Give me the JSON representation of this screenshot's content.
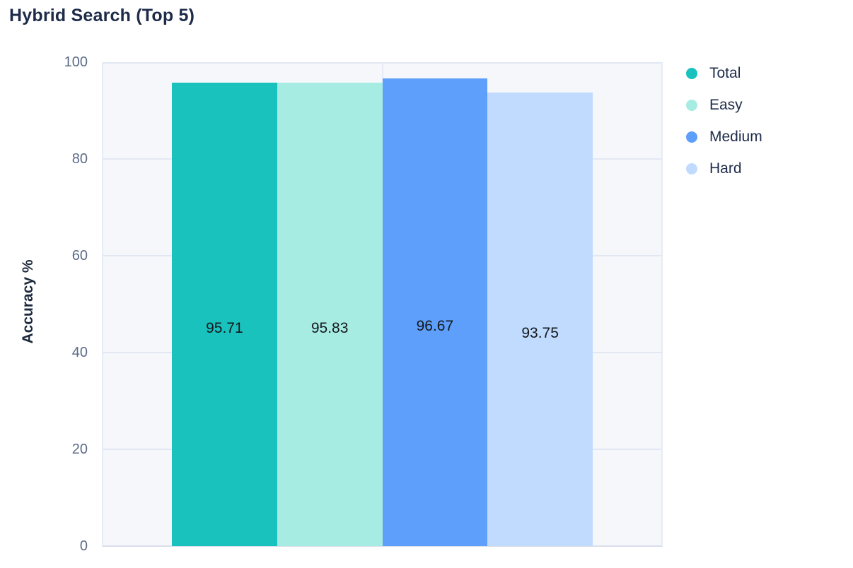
{
  "page": {
    "title": "Hybrid Search (Top 5)"
  },
  "chart_data": {
    "type": "bar",
    "title": "Hybrid Search (Top 5)",
    "xlabel": "",
    "ylabel": "Accuracy %",
    "ylim": [
      0,
      100
    ],
    "yticks": [
      0,
      20,
      40,
      60,
      80,
      100
    ],
    "grid": true,
    "plot_background": "#f5f7fb",
    "gridline_color": "#e2e8f3",
    "axis_line_color": "#d9dfec",
    "tick_text_color": "#5c6b89",
    "title_text_color": "#1e2b49",
    "value_label_color": "#15171c",
    "categories": [
      "Total",
      "Easy",
      "Medium",
      "Hard"
    ],
    "values": [
      95.71,
      95.83,
      96.67,
      93.75
    ],
    "series": [
      {
        "name": "Total",
        "value": 95.71,
        "label": "95.71",
        "color": "#19c2bc"
      },
      {
        "name": "Easy",
        "value": 95.83,
        "label": "95.83",
        "color": "#a6ece3"
      },
      {
        "name": "Medium",
        "value": 96.67,
        "label": "96.67",
        "color": "#5d9ffb"
      },
      {
        "name": "Hard",
        "value": 93.75,
        "label": "93.75",
        "color": "#c0dbfd"
      }
    ],
    "legend_position": "right",
    "legend": [
      "Total",
      "Easy",
      "Medium",
      "Hard"
    ]
  }
}
